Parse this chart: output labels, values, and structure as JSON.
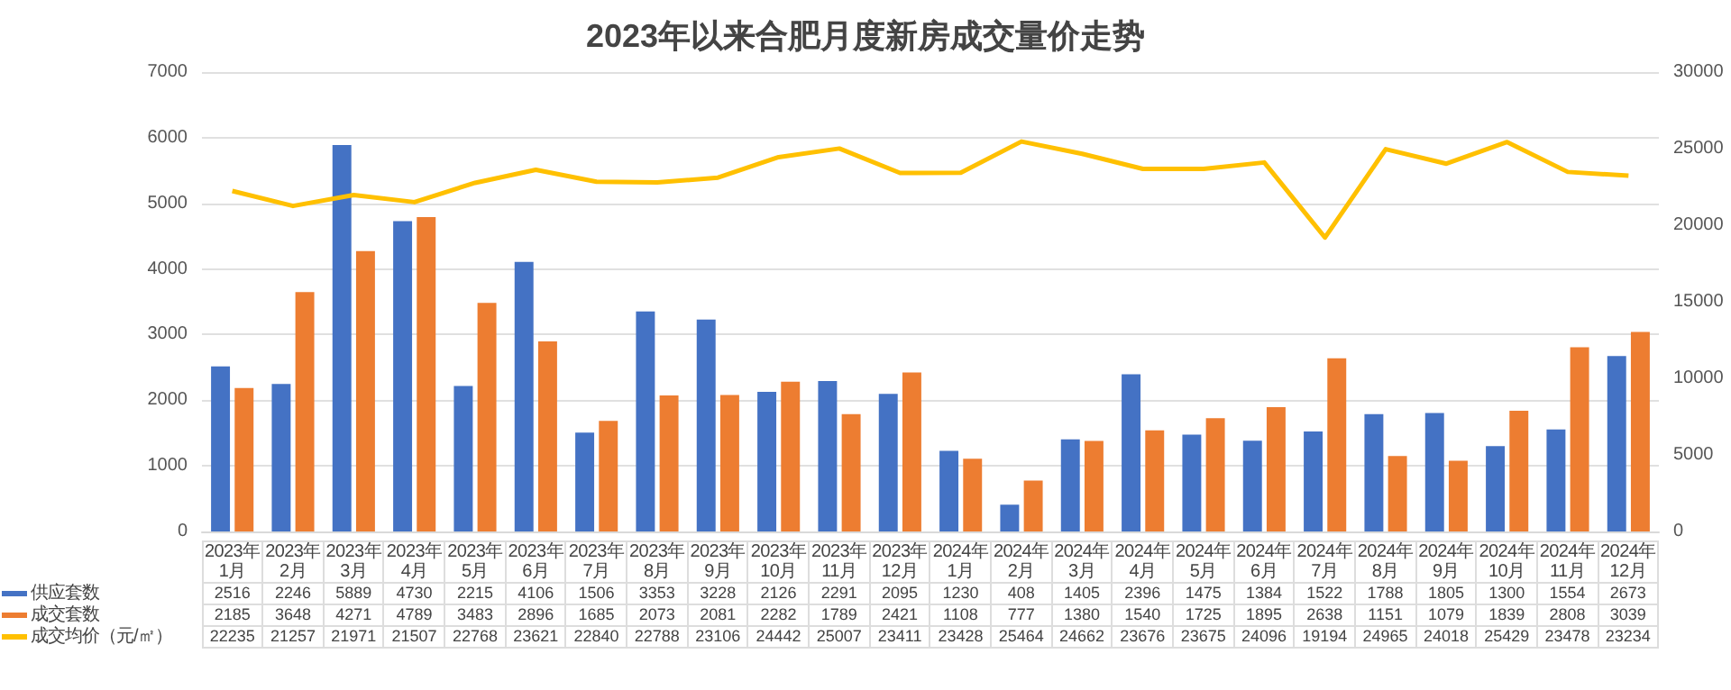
{
  "chart_data": {
    "type": "bar",
    "title": "2023年以来合肥月度新房成交量价走势",
    "categories": [
      "2023年1月",
      "2023年2月",
      "2023年3月",
      "2023年4月",
      "2023年5月",
      "2023年6月",
      "2023年7月",
      "2023年8月",
      "2023年9月",
      "2023年10月",
      "2023年11月",
      "2023年12月",
      "2024年1月",
      "2024年2月",
      "2024年3月",
      "2024年4月",
      "2024年5月",
      "2024年6月",
      "2024年7月",
      "2024年8月",
      "2024年9月",
      "2024年10月",
      "2024年11月",
      "2024年12月"
    ],
    "series": [
      {
        "name": "供应套数",
        "color": "#4472c4",
        "values": [
          2516,
          2246,
          5889,
          4730,
          2215,
          4106,
          1506,
          3353,
          3228,
          2126,
          2291,
          2095,
          1230,
          408,
          1405,
          2396,
          1475,
          1384,
          1522,
          1788,
          1805,
          1300,
          1554,
          2673
        ]
      },
      {
        "name": "成交套数",
        "color": "#ed7d31",
        "values": [
          2185,
          3648,
          4271,
          4789,
          3483,
          2896,
          1685,
          2073,
          2081,
          2282,
          1789,
          2421,
          1108,
          777,
          1380,
          1540,
          1725,
          1895,
          2638,
          1151,
          1079,
          1839,
          2808,
          3039
        ]
      },
      {
        "name": "成交均价（元/㎡）",
        "type": "line",
        "axis": "y2",
        "color": "#ffc000",
        "values": [
          22235,
          21257,
          21971,
          21507,
          22768,
          23621,
          22840,
          22788,
          23106,
          24442,
          25007,
          23411,
          23428,
          25464,
          24662,
          23676,
          23675,
          24096,
          19194,
          24965,
          24018,
          25429,
          23478,
          23234
        ]
      }
    ],
    "ylim": [
      0,
      7000
    ],
    "yticks": [
      0,
      1000,
      2000,
      3000,
      4000,
      5000,
      6000,
      7000
    ],
    "y2lim": [
      0,
      30000
    ],
    "y2ticks": [
      0,
      5000,
      10000,
      15000,
      20000,
      25000,
      30000
    ],
    "grid": "y",
    "legend": "bottom",
    "marker": "none",
    "data_labels": true
  }
}
